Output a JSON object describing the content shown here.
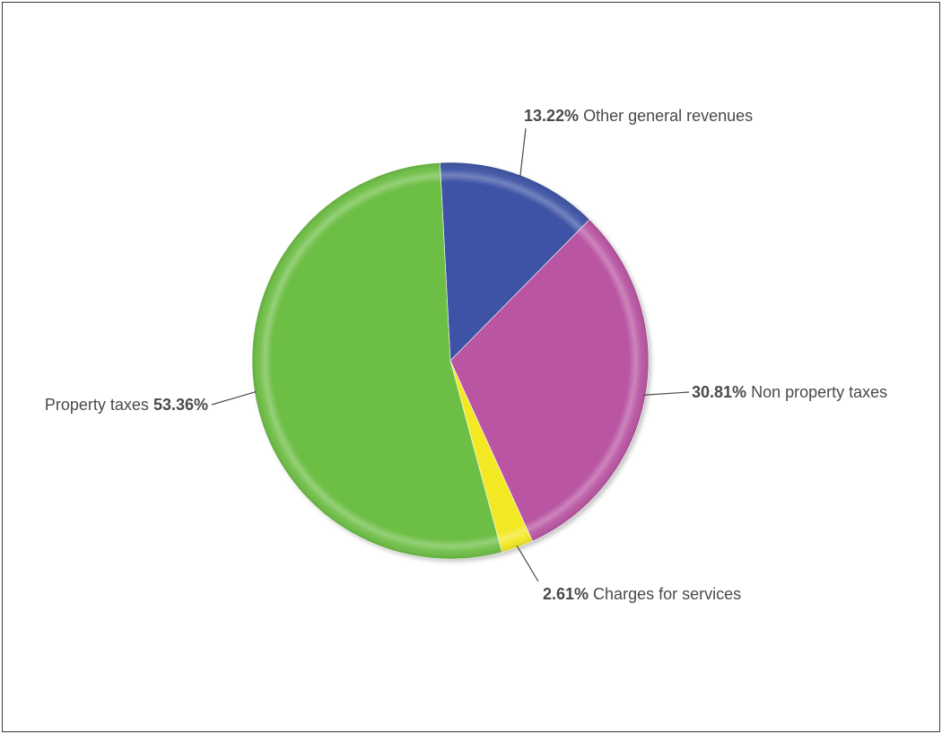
{
  "chart_data": {
    "type": "pie",
    "title": "",
    "slices": [
      {
        "label": "Other general revenues",
        "value": 13.22,
        "value_text": "13.22%",
        "color": "#3E53A5"
      },
      {
        "label": "Non property taxes",
        "value": 30.81,
        "value_text": "30.81%",
        "color": "#B955A2"
      },
      {
        "label": "Charges for services",
        "value": 2.61,
        "value_text": "2.61%",
        "color": "#F2E824"
      },
      {
        "label": "Property taxes",
        "value": 53.36,
        "value_text": "53.36%",
        "color": "#6DBE45"
      }
    ],
    "start_angle_deg": -3,
    "direction": "clockwise",
    "legend": "none"
  }
}
